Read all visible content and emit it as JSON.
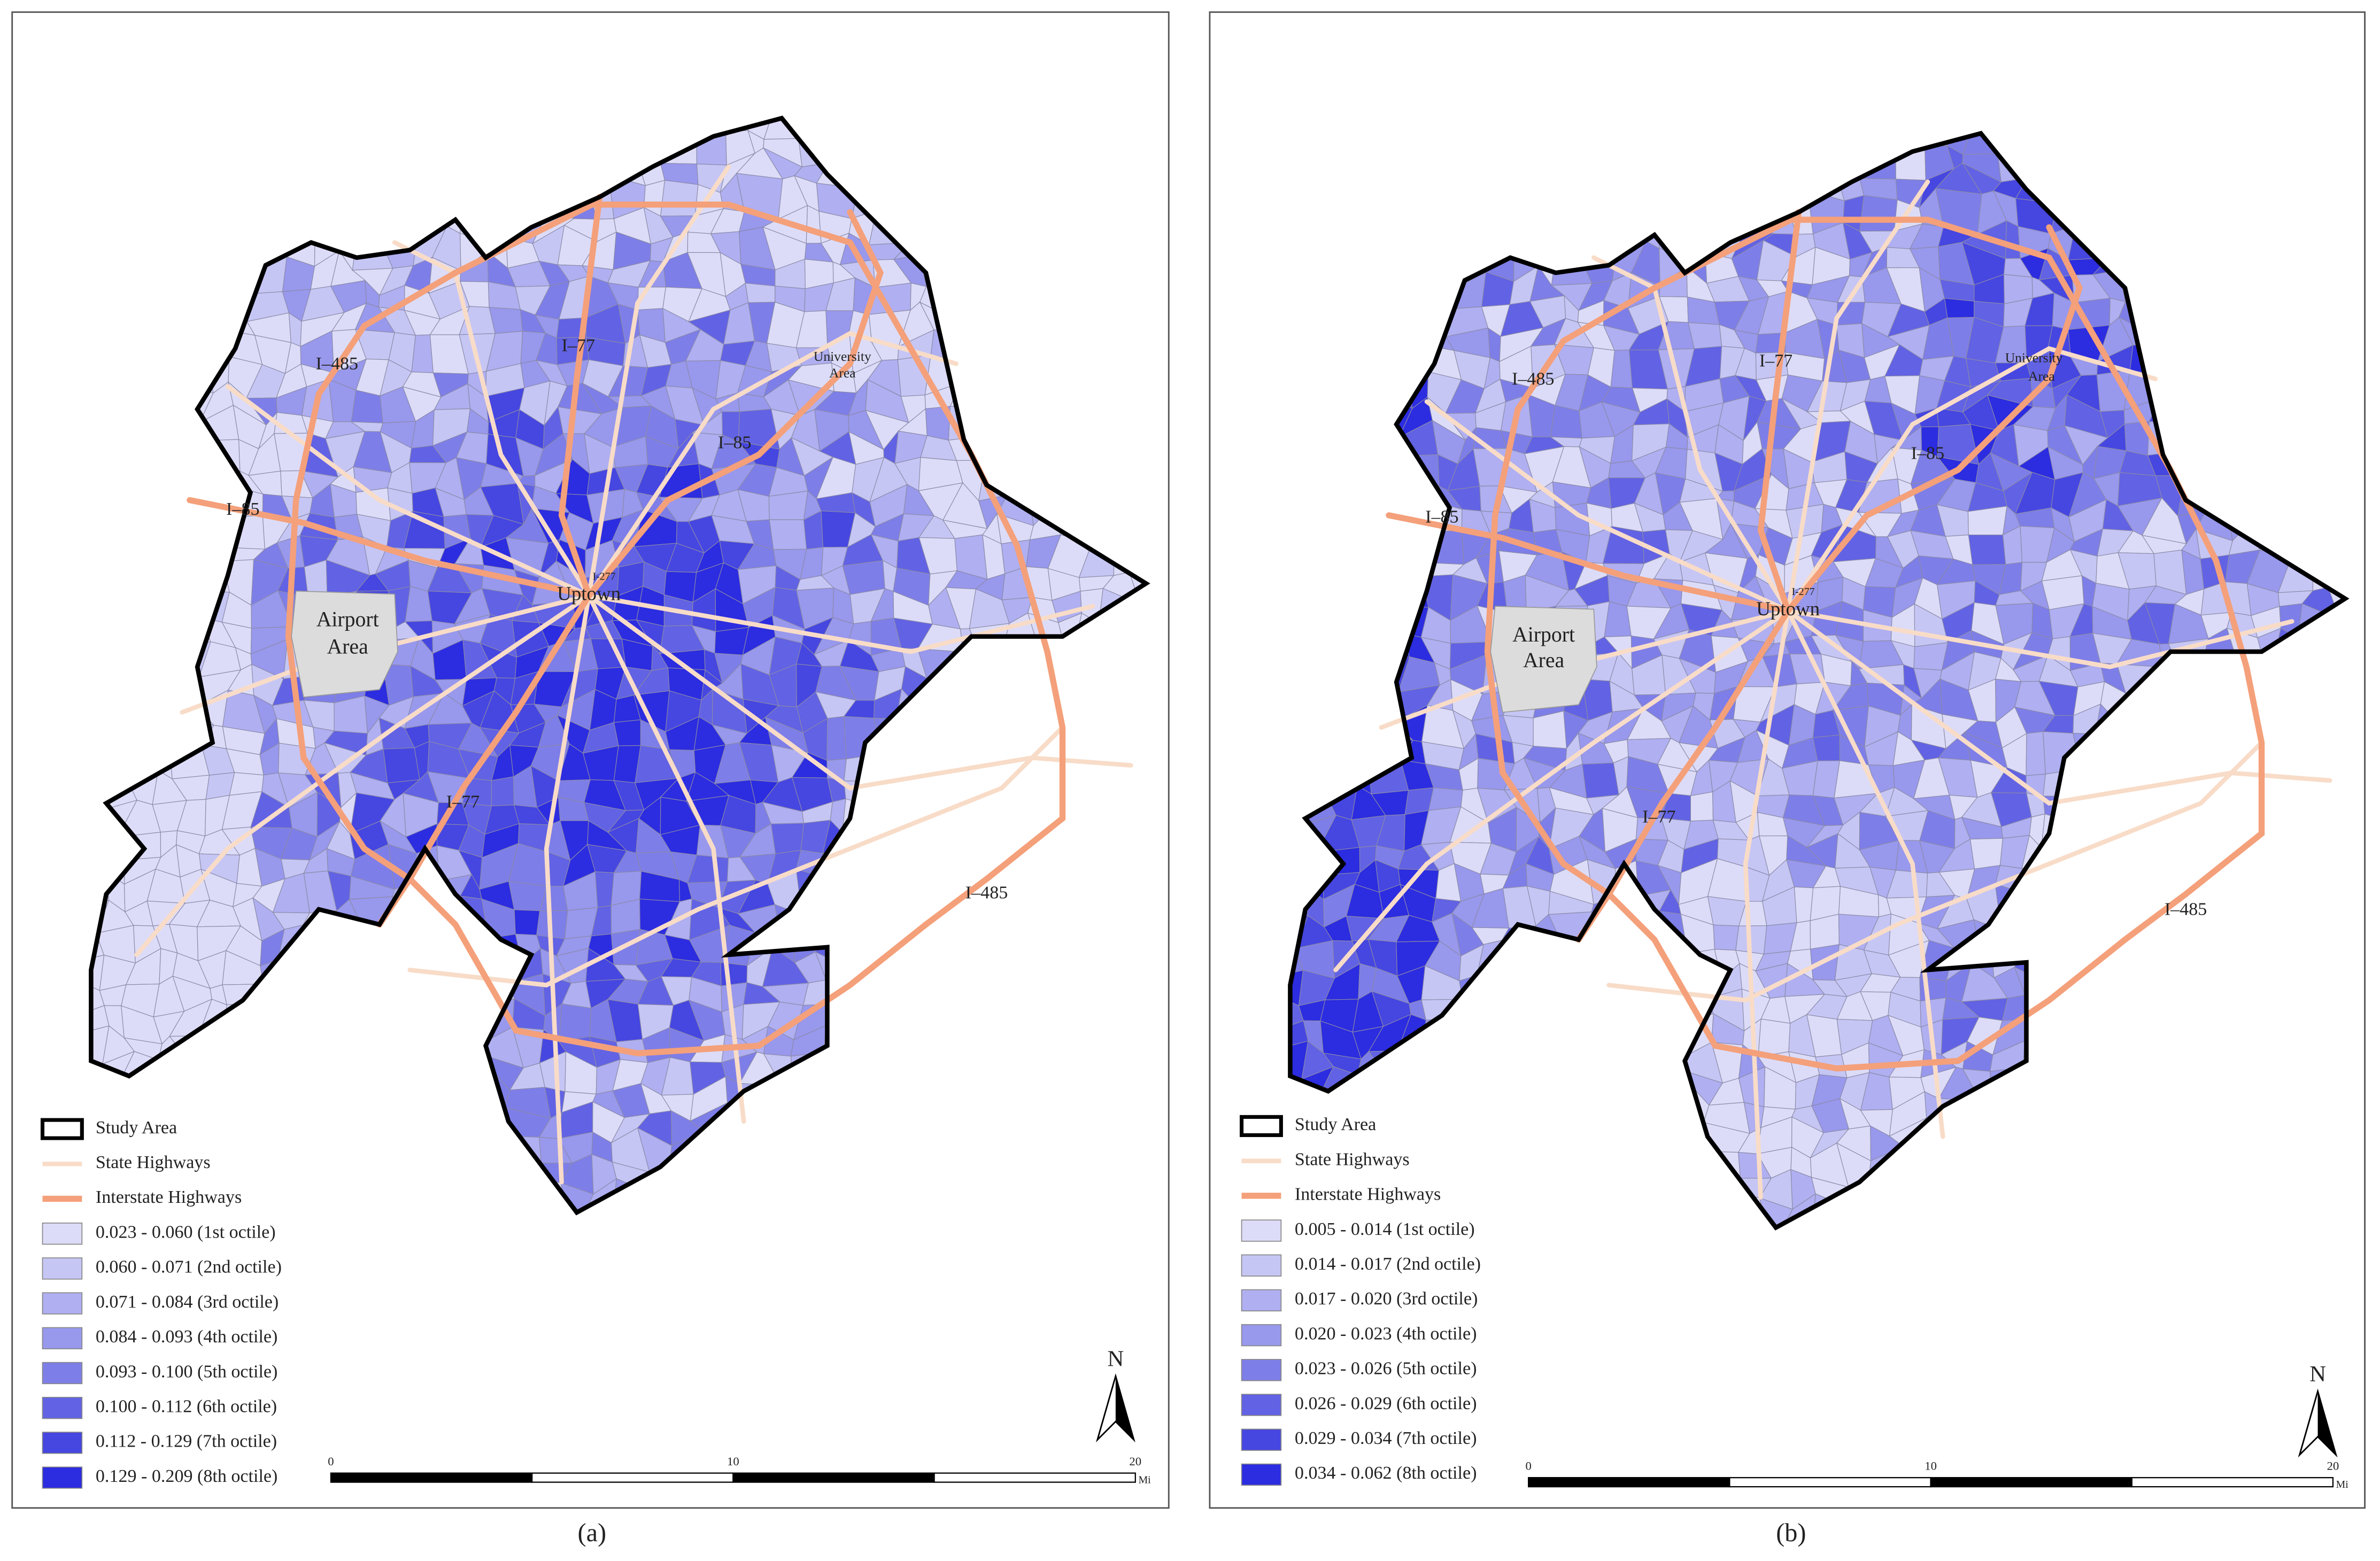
{
  "panels": [
    {
      "caption": "(a)",
      "legend": [
        "Study Area",
        "State Highways",
        "Interstate Highways",
        "0.023 - 0.060 (1st octile)",
        "0.060 - 0.071 (2nd octile)",
        "0.071 - 0.084 (3rd octile)",
        "0.084 - 0.093 (4th octile)",
        "0.093 - 0.100 (5th octile)",
        "0.100 - 0.112 (6th octile)",
        "0.112 - 0.129 (7th octile)",
        "0.129 - 0.209 (8th octile)"
      ],
      "map_labels": [
        "I–485",
        "I–77",
        "I–85",
        "I–85",
        "University",
        "Area",
        "Uptown",
        "I-277",
        "Airport",
        "Area",
        "I–77",
        "I–485"
      ],
      "north": "N",
      "scale": [
        "0",
        "10",
        "20",
        "Mi"
      ]
    },
    {
      "caption": "(b)",
      "legend": [
        "Study Area",
        "State Highways",
        "Interstate Highways",
        "0.005 - 0.014 (1st octile)",
        "0.014 - 0.017 (2nd octile)",
        "0.017 - 0.020 (3rd octile)",
        "0.020 - 0.023 (4th octile)",
        "0.023 - 0.026 (5th octile)",
        "0.026 - 0.029 (6th octile)",
        "0.029 - 0.034 (7th octile)",
        "0.034 - 0.062 (8th octile)"
      ],
      "map_labels": [
        "I–485",
        "I–77",
        "I–85",
        "I–85",
        "University",
        "Area",
        "Uptown",
        "I-277",
        "Airport",
        "Area",
        "I–77",
        "I–485"
      ],
      "north": "N",
      "scale": [
        "0",
        "10",
        "20",
        "Mi"
      ]
    }
  ],
  "octile_colors": [
    "#dcdcf8",
    "#c6c6f5",
    "#afaff1",
    "#9898ed",
    "#7e7ee8",
    "#6262e4",
    "#4646e1",
    "#2c2ce0"
  ]
}
